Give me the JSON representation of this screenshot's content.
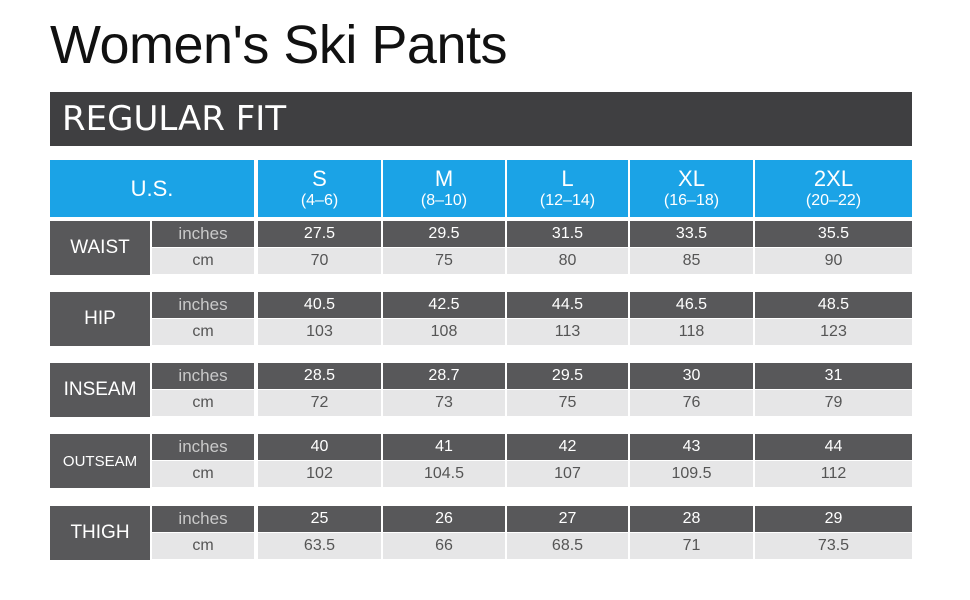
{
  "title": "Women's Ski Pants",
  "subtitle": "REGULAR FIT",
  "table": {
    "header_label": "U.S.",
    "sizes": [
      {
        "name": "S",
        "range": "(4–6)"
      },
      {
        "name": "M",
        "range": "(8–10)"
      },
      {
        "name": "L",
        "range": "(12–14)"
      },
      {
        "name": "XL",
        "range": "(16–18)"
      },
      {
        "name": "2XL",
        "range": "(20–22)"
      }
    ],
    "groups": [
      {
        "name": "WAIST",
        "rows": [
          {
            "unit": "inches",
            "values": [
              27.5,
              29.5,
              31.5,
              33.5,
              35.5
            ]
          },
          {
            "unit": "cm",
            "values": [
              70,
              75,
              80,
              85,
              90
            ]
          }
        ]
      },
      {
        "name": "HIP",
        "rows": [
          {
            "unit": "inches",
            "values": [
              40.5,
              42.5,
              44.5,
              46.5,
              48.5
            ]
          },
          {
            "unit": "cm",
            "values": [
              103,
              108,
              113,
              118,
              123
            ]
          }
        ]
      },
      {
        "name": "INSEAM",
        "rows": [
          {
            "unit": "inches",
            "values": [
              28.5,
              28.7,
              29.5,
              30,
              31
            ]
          },
          {
            "unit": "cm",
            "values": [
              72,
              73,
              75,
              76,
              79
            ]
          }
        ]
      },
      {
        "name": "OUTSEAM",
        "rows": [
          {
            "unit": "inches",
            "values": [
              40,
              41,
              42,
              43,
              44
            ]
          },
          {
            "unit": "cm",
            "values": [
              102,
              104.5,
              107,
              109.5,
              112
            ]
          }
        ]
      },
      {
        "name": "THIGH",
        "rows": [
          {
            "unit": "inches",
            "values": [
              25,
              26,
              27,
              28,
              29
            ]
          },
          {
            "unit": "cm",
            "values": [
              63.5,
              66,
              68.5,
              71,
              73.5
            ]
          }
        ]
      }
    ]
  }
}
